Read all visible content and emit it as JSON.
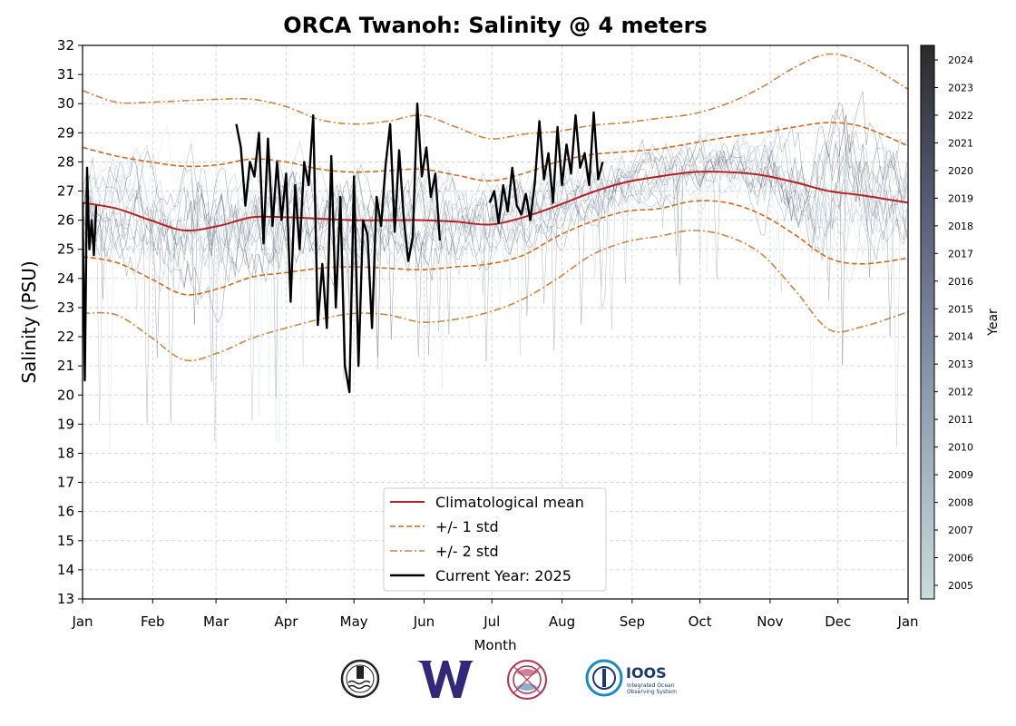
{
  "chart_data": {
    "type": "line",
    "title": "ORCA Twanoh: Salinity @ 4 meters",
    "xlabel": "Month",
    "ylabel": "Salinity (PSU)",
    "colorbar_label": "Year",
    "xlim": [
      0,
      365
    ],
    "ylim": [
      13,
      32
    ],
    "y_ticks": [
      13,
      14,
      15,
      16,
      17,
      18,
      19,
      20,
      21,
      22,
      23,
      24,
      25,
      26,
      27,
      28,
      29,
      30,
      31,
      32
    ],
    "x_tick_labels": [
      "Jan",
      "Feb",
      "Mar",
      "Apr",
      "May",
      "Jun",
      "Jul",
      "Aug",
      "Sep",
      "Oct",
      "Nov",
      "Dec",
      "Jan"
    ],
    "x_tick_days": [
      0,
      31,
      59,
      90,
      120,
      151,
      181,
      212,
      243,
      273,
      304,
      334,
      365
    ],
    "grid": true,
    "legend_placement": "lower-center",
    "legend": [
      {
        "label": "Climatological mean",
        "color": "#b22222",
        "style": "solid"
      },
      {
        "label": "+/- 1 std",
        "color": "#d2691e",
        "style": "dashed"
      },
      {
        "label": "+/- 2 std",
        "color": "#cd853f",
        "style": "dashdot"
      },
      {
        "label": "Current Year: 2025",
        "color": "#000000",
        "style": "solid"
      }
    ],
    "colorbar_years": [
      "2005",
      "2006",
      "2007",
      "2008",
      "2009",
      "2010",
      "2011",
      "2012",
      "2013",
      "2014",
      "2015",
      "2016",
      "2017",
      "2018",
      "2019",
      "2020",
      "2021",
      "2022",
      "2023",
      "2024"
    ],
    "colors": {
      "mean": "#b22222",
      "std1": "#d2691e",
      "std2": "#cd853f",
      "current": "#000000",
      "cmap_low": "#c9dcdb",
      "cmap_high": "#2b2b2b"
    },
    "series": [
      {
        "name": "Climatological mean",
        "x": [
          0,
          15,
          30,
          45,
          60,
          75,
          90,
          105,
          120,
          135,
          150,
          165,
          180,
          195,
          210,
          225,
          240,
          255,
          270,
          285,
          300,
          315,
          330,
          345,
          365
        ],
        "values": [
          26.6,
          26.4,
          26.0,
          25.65,
          25.8,
          26.1,
          26.1,
          26.05,
          26.0,
          26.0,
          26.0,
          25.95,
          25.85,
          26.1,
          26.5,
          26.95,
          27.3,
          27.5,
          27.65,
          27.65,
          27.55,
          27.3,
          27.0,
          26.85,
          26.6
        ]
      },
      {
        "name": "+/- 1 std",
        "x": [
          0,
          15,
          30,
          45,
          60,
          75,
          90,
          105,
          120,
          135,
          150,
          165,
          180,
          195,
          210,
          225,
          240,
          255,
          270,
          285,
          300,
          315,
          330,
          345,
          365
        ],
        "values": [
          28.5,
          28.2,
          28.0,
          27.85,
          27.9,
          28.1,
          28.0,
          27.75,
          27.65,
          27.7,
          27.75,
          27.55,
          27.35,
          27.6,
          28.0,
          28.25,
          28.35,
          28.45,
          28.65,
          28.85,
          29.0,
          29.2,
          29.35,
          29.2,
          28.55
        ]
      },
      {
        "name": "+/- 1 std (lower)",
        "x": [
          0,
          15,
          30,
          45,
          60,
          75,
          90,
          105,
          120,
          135,
          150,
          165,
          180,
          195,
          210,
          225,
          240,
          255,
          270,
          285,
          300,
          315,
          330,
          345,
          365
        ],
        "values": [
          24.75,
          24.55,
          24.0,
          23.45,
          23.65,
          24.05,
          24.2,
          24.35,
          24.4,
          24.35,
          24.3,
          24.4,
          24.5,
          24.8,
          25.45,
          25.95,
          26.3,
          26.4,
          26.65,
          26.6,
          26.2,
          25.5,
          24.7,
          24.5,
          24.7
        ]
      },
      {
        "name": "+/- 2 std",
        "x": [
          0,
          15,
          30,
          45,
          60,
          75,
          90,
          105,
          120,
          135,
          150,
          165,
          180,
          195,
          210,
          225,
          240,
          255,
          270,
          285,
          300,
          315,
          330,
          345,
          365
        ],
        "values": [
          30.45,
          30.05,
          30.05,
          30.1,
          30.15,
          30.15,
          29.9,
          29.45,
          29.3,
          29.4,
          29.6,
          29.2,
          28.8,
          28.95,
          29.05,
          29.25,
          29.35,
          29.5,
          29.65,
          30.0,
          30.55,
          31.25,
          31.7,
          31.4,
          30.5
        ]
      },
      {
        "name": "+/- 2 std (lower)",
        "x": [
          0,
          15,
          30,
          45,
          60,
          75,
          90,
          105,
          120,
          135,
          150,
          165,
          180,
          195,
          210,
          225,
          240,
          255,
          270,
          285,
          300,
          315,
          330,
          345,
          365
        ],
        "values": [
          22.8,
          22.75,
          22.0,
          21.2,
          21.45,
          21.95,
          22.3,
          22.6,
          22.8,
          22.75,
          22.5,
          22.6,
          22.85,
          23.3,
          24.0,
          24.8,
          25.25,
          25.45,
          25.65,
          25.45,
          24.85,
          23.6,
          22.25,
          22.35,
          22.85
        ]
      },
      {
        "name": "Current Year: 2025",
        "segments": [
          {
            "x": [
              0,
              1,
              2,
              3,
              4,
              5,
              6
            ],
            "values": [
              26.6,
              20.5,
              27.8,
              25.0,
              26.0,
              24.8,
              26.5
            ]
          },
          {
            "x": [
              68,
              70,
              72,
              74,
              76,
              78,
              80,
              82,
              84,
              86,
              88,
              90,
              92,
              94,
              96,
              98,
              100,
              102,
              104,
              106,
              108,
              110,
              112,
              114,
              116,
              118,
              120,
              122,
              124,
              126,
              128,
              130,
              132,
              134,
              136,
              138,
              140,
              142,
              144,
              146,
              148,
              150,
              152,
              154,
              156,
              158
            ],
            "values": [
              29.3,
              28.5,
              26.5,
              28.0,
              27.5,
              29.0,
              25.2,
              28.8,
              25.8,
              28.0,
              26.0,
              27.6,
              23.2,
              27.2,
              25.0,
              28.0,
              27.2,
              29.6,
              22.4,
              24.5,
              22.3,
              28.2,
              23.0,
              26.8,
              21.0,
              20.1,
              27.5,
              21.0,
              26.0,
              25.5,
              22.3,
              26.8,
              25.8,
              27.9,
              29.3,
              25.6,
              28.4,
              26.1,
              24.6,
              25.4,
              30.0,
              27.5,
              28.5,
              26.8,
              27.6,
              25.3
            ]
          },
          {
            "x": [
              180,
              182,
              184,
              186,
              188,
              190,
              192,
              194,
              196,
              198,
              200,
              202,
              204,
              206,
              208,
              210,
              212,
              214,
              216,
              218,
              220,
              222,
              224,
              226,
              228,
              230
            ],
            "values": [
              26.6,
              27.0,
              25.9,
              27.2,
              26.3,
              27.8,
              26.5,
              26.2,
              26.9,
              26.0,
              27.3,
              29.4,
              27.4,
              28.3,
              26.6,
              29.2,
              27.2,
              28.6,
              27.6,
              29.6,
              27.8,
              28.3,
              27.2,
              29.7,
              27.4,
              28.0
            ]
          }
        ]
      }
    ]
  }
}
